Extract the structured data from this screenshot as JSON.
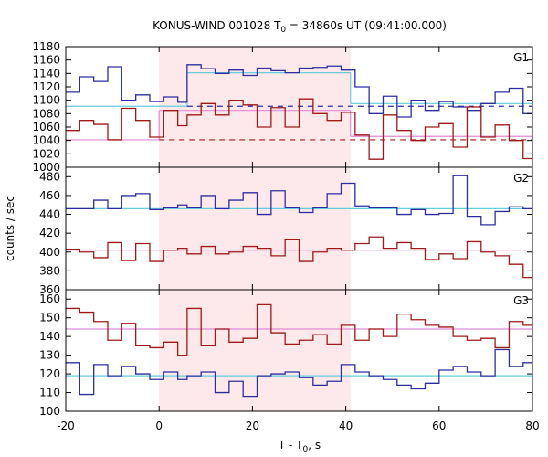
{
  "chart_data": {
    "type": "line",
    "title": "KONUS-WIND 001028 T",
    "title_sub": "0",
    "title_rest": " = 34860s UT (09:41:00.000)",
    "xlabel_main": "T - T",
    "xlabel_sub": "0",
    "xlabel_rest": ", s",
    "ylabel": "counts / sec",
    "xlim": [
      -20,
      80
    ],
    "x_ticks": [
      -20,
      0,
      20,
      40,
      60,
      80
    ],
    "x_tick_labels": [
      "-20",
      "0",
      "20",
      "40",
      "60",
      "80"
    ],
    "shaded_interval": [
      0,
      41
    ],
    "colors": {
      "blue": "#2c2ca0",
      "red": "#a01818",
      "cyan": "#66ccdd",
      "pink": "#e08ad8",
      "shade": "#fde8ea"
    },
    "panels": [
      {
        "name": "G1",
        "ylim": [
          1000,
          1180
        ],
        "y_ticks": [
          1000,
          1020,
          1040,
          1060,
          1080,
          1100,
          1120,
          1140,
          1160,
          1180
        ],
        "series": [
          {
            "color": "blue",
            "x": [
              -20,
              -17,
              -14,
              -11,
              -8,
              -5,
              -2,
              1,
              4,
              6,
              9,
              12,
              15,
              18,
              21,
              24,
              27,
              30,
              33,
              36,
              39,
              42,
              45,
              48,
              51,
              54,
              57,
              60,
              63,
              66,
              69,
              72,
              75,
              78,
              80
            ],
            "y": [
              1112,
              1135,
              1128,
              1150,
              1100,
              1108,
              1098,
              1105,
              1097,
              1153,
              1147,
              1140,
              1145,
              1137,
              1148,
              1144,
              1141,
              1148,
              1149,
              1151,
              1145,
              1120,
              1080,
              1106,
              1075,
              1100,
              1085,
              1098,
              1090,
              1085,
              1095,
              1112,
              1118,
              1080,
              1080
            ]
          },
          {
            "color": "red",
            "x": [
              -20,
              -17,
              -14,
              -11,
              -8,
              -5,
              -2,
              1,
              4,
              6,
              9,
              12,
              15,
              18,
              21,
              24,
              27,
              30,
              33,
              36,
              39,
              42,
              45,
              48,
              51,
              54,
              57,
              60,
              63,
              66,
              69,
              72,
              75,
              78,
              80
            ],
            "y": [
              1055,
              1070,
              1064,
              1041,
              1088,
              1070,
              1045,
              1085,
              1062,
              1078,
              1095,
              1078,
              1100,
              1093,
              1060,
              1089,
              1060,
              1102,
              1080,
              1070,
              1082,
              1048,
              1012,
              1078,
              1055,
              1040,
              1060,
              1065,
              1030,
              1090,
              1045,
              1063,
              1040,
              1013,
              1067
            ]
          }
        ],
        "fits": [
          {
            "color": "cyan",
            "style": "solid",
            "segments": [
              [
                -20,
                1091,
                6,
                1091
              ],
              [
                6,
                1141,
                41,
                1141
              ],
              [
                41,
                1095,
                80,
                1095
              ]
            ]
          },
          {
            "color": "blue",
            "style": "dashed",
            "segments": [
              [
                6,
                1091,
                80,
                1091
              ]
            ]
          },
          {
            "color": "pink",
            "style": "solid",
            "segments": [
              [
                -20,
                1041,
                0,
                1041
              ],
              [
                0,
                1085,
                41,
                1085
              ],
              [
                41,
                1046,
                80,
                1046
              ]
            ]
          },
          {
            "color": "red",
            "style": "dashed",
            "segments": [
              [
                0,
                1041,
                80,
                1041
              ]
            ]
          }
        ]
      },
      {
        "name": "G2",
        "ylim": [
          360,
          490
        ],
        "y_ticks": [
          360,
          380,
          400,
          420,
          440,
          460,
          480
        ],
        "series": [
          {
            "color": "blue",
            "x": [
              -20,
              -14,
              -11,
              -8,
              -5,
              -2,
              1,
              4,
              6,
              9,
              12,
              15,
              18,
              21,
              24,
              27,
              30,
              33,
              36,
              39,
              42,
              45,
              48,
              51,
              54,
              57,
              60,
              63,
              66,
              69,
              72,
              75,
              78,
              80
            ],
            "y": [
              446,
              455,
              446,
              460,
              462,
              445,
              447,
              450,
              447,
              460,
              446,
              455,
              463,
              440,
              465,
              447,
              442,
              447,
              462,
              473,
              449,
              447,
              447,
              440,
              445,
              440,
              441,
              481,
              438,
              429,
              443,
              448,
              446,
              446
            ]
          },
          {
            "color": "red",
            "x": [
              -20,
              -17,
              -14,
              -11,
              -8,
              -5,
              -2,
              1,
              4,
              6,
              9,
              12,
              15,
              18,
              21,
              24,
              27,
              30,
              33,
              36,
              39,
              42,
              45,
              48,
              51,
              54,
              57,
              60,
              63,
              66,
              69,
              72,
              75,
              78,
              80
            ],
            "y": [
              403,
              400,
              394,
              410,
              391,
              409,
              390,
              402,
              404,
              398,
              406,
              398,
              400,
              406,
              404,
              396,
              413,
              390,
              400,
              404,
              402,
              409,
              416,
              404,
              410,
              404,
              392,
              398,
              393,
              411,
              400,
              396,
              387,
              373,
              378
            ]
          }
        ],
        "fits": [
          {
            "color": "cyan",
            "style": "solid",
            "segments": [
              [
                -20,
                446,
                80,
                446
              ]
            ]
          },
          {
            "color": "pink",
            "style": "solid",
            "segments": [
              [
                -20,
                402,
                80,
                402
              ]
            ]
          }
        ]
      },
      {
        "name": "G3",
        "ylim": [
          100,
          165
        ],
        "y_ticks": [
          100,
          110,
          120,
          130,
          140,
          150,
          160
        ],
        "series": [
          {
            "color": "blue",
            "x": [
              -20,
              -17,
              -14,
              -11,
              -8,
              -5,
              -2,
              1,
              4,
              6,
              9,
              12,
              15,
              18,
              21,
              24,
              27,
              30,
              33,
              36,
              39,
              42,
              45,
              48,
              51,
              54,
              57,
              60,
              63,
              66,
              69,
              72,
              75,
              78,
              80
            ],
            "y": [
              126,
              109,
              125,
              119,
              124,
              120,
              117,
              121,
              117,
              119,
              121,
              110,
              116,
              108,
              119,
              120,
              121,
              118,
              114,
              116,
              125,
              121,
              119,
              117,
              114,
              112,
              115,
              122,
              124,
              121,
              119,
              133,
              124,
              126,
              126
            ]
          },
          {
            "color": "red",
            "x": [
              -20,
              -17,
              -14,
              -11,
              -8,
              -5,
              -2,
              1,
              4,
              6,
              9,
              12,
              15,
              18,
              21,
              24,
              27,
              30,
              33,
              36,
              39,
              42,
              45,
              48,
              51,
              54,
              57,
              60,
              63,
              66,
              69,
              72,
              75,
              78,
              80
            ],
            "y": [
              155,
              153,
              148,
              138,
              147,
              135,
              134,
              137,
              130,
              155,
              135,
              144,
              137,
              139,
              157,
              142,
              136,
              138,
              141,
              136,
              146,
              138,
              144,
              140,
              152,
              149,
              146,
              145,
              140,
              138,
              139,
              134,
              148,
              146,
              142
            ]
          }
        ],
        "fits": [
          {
            "color": "cyan",
            "style": "solid",
            "segments": [
              [
                -20,
                119,
                80,
                119
              ]
            ]
          },
          {
            "color": "pink",
            "style": "solid",
            "segments": [
              [
                -20,
                144,
                80,
                144
              ]
            ]
          }
        ]
      }
    ]
  }
}
